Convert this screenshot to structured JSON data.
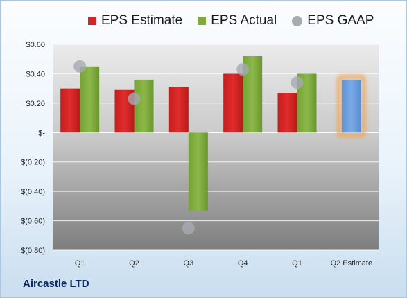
{
  "colors": {
    "estimate": "#d42424",
    "actual": "#7fab3c",
    "gaap": "#a6aab1",
    "projected": "#6d9fde",
    "projected_glow": "#f0a24a"
  },
  "legend": [
    {
      "label": "EPS Estimate",
      "series": "estimate",
      "shape": "square"
    },
    {
      "label": "EPS Actual",
      "series": "actual",
      "shape": "square"
    },
    {
      "label": "EPS GAAP",
      "series": "gaap",
      "shape": "circle"
    }
  ],
  "company": "Aircastle LTD",
  "chart_data": {
    "type": "bar",
    "categories": [
      "Q1",
      "Q2",
      "Q3",
      "Q4",
      "Q1",
      "Q2 Estimate"
    ],
    "series": [
      {
        "name": "EPS Estimate",
        "key": "estimate",
        "values": [
          0.3,
          0.29,
          0.31,
          0.4,
          0.27,
          null
        ]
      },
      {
        "name": "EPS Actual",
        "key": "actual",
        "values": [
          0.45,
          0.36,
          -0.53,
          0.52,
          0.4,
          0.36
        ]
      },
      {
        "name": "EPS GAAP",
        "key": "gaap",
        "style": "marker",
        "values": [
          0.45,
          0.23,
          -0.65,
          0.43,
          0.34,
          null
        ]
      }
    ],
    "projected_category_index": 5,
    "ylim": [
      -0.8,
      0.6
    ],
    "yticks": [
      0.6,
      0.4,
      0.2,
      0.0,
      -0.2,
      -0.4,
      -0.6,
      -0.8
    ],
    "ytick_labels": [
      "$0.60",
      "$0.40",
      "$0.20",
      "$-",
      "$(0.20)",
      "$(0.40)",
      "$(0.60)",
      "$(0.80)"
    ],
    "grid": true,
    "legend_position": "top"
  }
}
